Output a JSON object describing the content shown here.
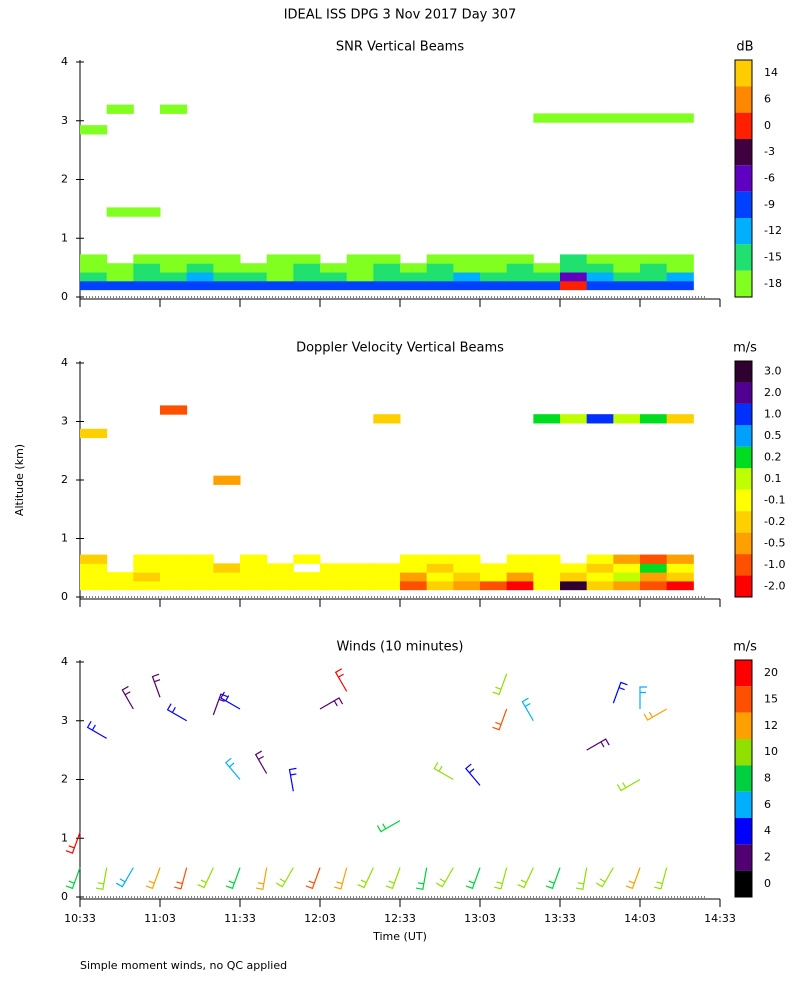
{
  "title": "IDEAL ISS DPG    3 Nov 2017 Day 307",
  "footnote": "Simple moment winds, no QC applied",
  "chart_data": [
    {
      "type": "heatmap",
      "title": "SNR Vertical Beams",
      "units": "dB",
      "xlim": [
        "10:33",
        "14:33"
      ],
      "xticks": [
        "10:33",
        "11:03",
        "11:33",
        "12:03",
        "12:33",
        "13:03",
        "13:33",
        "14:03",
        "14:33"
      ],
      "ylim": [
        0,
        4
      ],
      "yticks": [
        0,
        1,
        2,
        3,
        4
      ],
      "colorbar": {
        "colors": [
          "#ffcc00",
          "#ff8800",
          "#ff2000",
          "#400040",
          "#6000c0",
          "#0040ff",
          "#00b0ff",
          "#20e070",
          "#80ff20"
        ],
        "ticks": [
          14,
          6,
          0,
          -3,
          -6,
          -9,
          -12,
          -15,
          -18
        ]
      },
      "x": [
        "10:33",
        "10:43",
        "10:53",
        "11:03",
        "11:13",
        "11:23",
        "11:33",
        "11:43",
        "11:53",
        "12:03",
        "12:13",
        "12:23",
        "12:33",
        "12:43",
        "12:53",
        "13:03",
        "13:13",
        "13:23",
        "13:33",
        "13:43",
        "13:53",
        "14:03",
        "14:13"
      ],
      "y": [
        0.2,
        0.35,
        0.5,
        0.65,
        1.45,
        2.85,
        3.05,
        3.2
      ],
      "values": [
        [
          -9,
          -9,
          -9,
          -9,
          -9,
          -9,
          -9,
          -9,
          -9,
          -9,
          -9,
          -9,
          -9,
          -9,
          -9,
          -9,
          -9,
          -9,
          0,
          -9,
          -9,
          -9,
          -9
        ],
        [
          -15,
          -18,
          -15,
          -15,
          -12,
          -15,
          -15,
          -18,
          -15,
          -15,
          -18,
          -15,
          -15,
          -15,
          -12,
          -15,
          -15,
          -15,
          -6,
          -12,
          -15,
          -15,
          -12
        ],
        [
          -18,
          -18,
          -15,
          -18,
          -15,
          -18,
          -18,
          -18,
          -15,
          -18,
          -18,
          -15,
          -18,
          -15,
          -18,
          -18,
          -15,
          -18,
          -15,
          -15,
          -18,
          -15,
          -18
        ],
        [
          -18,
          null,
          -18,
          -18,
          -18,
          -18,
          null,
          -18,
          -18,
          null,
          -18,
          -18,
          null,
          -18,
          -18,
          -18,
          -18,
          null,
          -15,
          -18,
          -18,
          -18,
          -18
        ],
        [
          null,
          -18,
          -18,
          null,
          null,
          null,
          null,
          null,
          null,
          null,
          null,
          null,
          null,
          null,
          null,
          null,
          null,
          null,
          null,
          null,
          null,
          null,
          null
        ],
        [
          -18,
          null,
          null,
          null,
          null,
          null,
          null,
          null,
          null,
          null,
          null,
          null,
          null,
          null,
          null,
          null,
          null,
          null,
          null,
          null,
          null,
          null,
          null
        ],
        [
          null,
          null,
          null,
          null,
          null,
          null,
          null,
          null,
          null,
          null,
          null,
          null,
          null,
          null,
          null,
          null,
          null,
          -18,
          -18,
          -18,
          -18,
          -18,
          -18
        ],
        [
          null,
          -18,
          null,
          -18,
          null,
          null,
          null,
          null,
          null,
          null,
          null,
          null,
          null,
          null,
          null,
          null,
          null,
          null,
          null,
          null,
          null,
          null,
          null
        ]
      ]
    },
    {
      "type": "heatmap",
      "title": "Doppler Velocity Vertical Beams",
      "units": "m/s",
      "ylabel": "Altitude (km)",
      "xlim": [
        "10:33",
        "14:33"
      ],
      "xticks": [
        "10:33",
        "11:03",
        "11:33",
        "12:03",
        "12:33",
        "13:03",
        "13:33",
        "14:03",
        "14:33"
      ],
      "ylim": [
        0,
        4
      ],
      "yticks": [
        0,
        1,
        2,
        3,
        4
      ],
      "colorbar": {
        "colors": [
          "#300030",
          "#500090",
          "#0030ff",
          "#00a0ff",
          "#00dd20",
          "#c0ff00",
          "#ffff00",
          "#ffd000",
          "#ffa000",
          "#ff5000",
          "#ff0000"
        ],
        "ticks": [
          {
            "value": 3,
            "label": "3.0"
          },
          {
            "value": 2,
            "label": "2.0"
          },
          {
            "value": 1,
            "label": "1.0"
          },
          0.5,
          0.2,
          0.1,
          -0.1,
          -0.2,
          -0.5,
          {
            "value": -1,
            "label": "-1.0"
          },
          {
            "value": -2,
            "label": "-2.0"
          }
        ]
      },
      "x": [
        "10:33",
        "10:43",
        "10:53",
        "11:03",
        "11:13",
        "11:23",
        "11:33",
        "11:43",
        "11:53",
        "12:03",
        "12:13",
        "12:23",
        "12:33",
        "12:43",
        "12:53",
        "13:03",
        "13:13",
        "13:23",
        "13:33",
        "13:43",
        "13:53",
        "14:03",
        "14:13"
      ],
      "y": [
        0.2,
        0.35,
        0.5,
        0.65,
        2.0,
        2.8,
        3.05,
        3.2
      ],
      "values": [
        [
          -0.1,
          -0.1,
          -0.1,
          -0.1,
          -0.1,
          -0.1,
          -0.1,
          -0.1,
          -0.1,
          -0.1,
          -0.1,
          -0.1,
          -1.0,
          -0.2,
          -0.5,
          -1.0,
          -2.0,
          -0.1,
          3.0,
          -0.2,
          -0.5,
          -1.0,
          -2.0
        ],
        [
          -0.1,
          -0.1,
          -0.2,
          -0.1,
          -0.1,
          -0.1,
          -0.1,
          -0.1,
          -0.1,
          -0.1,
          -0.1,
          -0.1,
          -0.5,
          -0.1,
          -0.2,
          -0.1,
          -0.5,
          -0.1,
          -0.2,
          -0.1,
          0.1,
          -0.5,
          -0.2
        ],
        [
          -0.1,
          null,
          -0.1,
          -0.1,
          -0.1,
          -0.2,
          -0.1,
          -0.1,
          null,
          -0.1,
          -0.1,
          -0.1,
          -0.1,
          -0.2,
          -0.1,
          -0.1,
          -0.1,
          -0.1,
          -0.1,
          -0.2,
          -0.1,
          0.2,
          -0.1
        ],
        [
          -0.2,
          null,
          -0.1,
          -0.1,
          -0.1,
          null,
          -0.1,
          null,
          -0.1,
          null,
          null,
          null,
          -0.1,
          -0.1,
          -0.1,
          null,
          -0.1,
          -0.1,
          null,
          -0.1,
          -0.5,
          -1.0,
          -0.5
        ],
        [
          null,
          null,
          null,
          null,
          null,
          -0.5,
          null,
          null,
          null,
          null,
          null,
          null,
          null,
          null,
          null,
          null,
          null,
          null,
          null,
          null,
          null,
          null,
          null
        ],
        [
          -0.2,
          null,
          null,
          null,
          null,
          null,
          null,
          null,
          null,
          null,
          null,
          null,
          null,
          null,
          null,
          null,
          null,
          null,
          null,
          null,
          null,
          null,
          null
        ],
        [
          null,
          null,
          null,
          null,
          null,
          null,
          null,
          null,
          null,
          null,
          null,
          -0.2,
          null,
          null,
          null,
          null,
          null,
          0.2,
          0.1,
          1.0,
          0.1,
          0.2,
          -0.2
        ],
        [
          null,
          null,
          null,
          -1.0,
          null,
          null,
          null,
          null,
          null,
          null,
          null,
          null,
          null,
          null,
          null,
          null,
          null,
          null,
          null,
          null,
          null,
          null,
          null
        ]
      ]
    },
    {
      "type": "barbs",
      "title": "Winds (10 minutes)",
      "units": "m/s",
      "xlabel": "Time (UT)",
      "xlim": [
        "10:33",
        "14:33"
      ],
      "xticks": [
        "10:33",
        "11:03",
        "11:33",
        "12:03",
        "12:33",
        "13:03",
        "13:33",
        "14:03",
        "14:33"
      ],
      "ylim": [
        0,
        4
      ],
      "yticks": [
        0,
        1,
        2,
        3,
        4
      ],
      "colorbar": {
        "colors": [
          "#ff0000",
          "#ff5000",
          "#ffa000",
          "#90e000",
          "#00d040",
          "#00b0ff",
          "#0000ff",
          "#500070",
          "#000000"
        ],
        "ticks": [
          20,
          15,
          12,
          10,
          8,
          6,
          4,
          2,
          0
        ]
      },
      "x": [
        "10:33",
        "10:43",
        "10:53",
        "11:03",
        "11:13",
        "11:23",
        "11:33",
        "11:43",
        "11:53",
        "12:03",
        "12:13",
        "12:23",
        "12:33",
        "12:43",
        "12:53",
        "13:03",
        "13:13",
        "13:23",
        "13:33",
        "13:43",
        "13:53",
        "14:03",
        "14:13",
        "10:43",
        "10:53",
        "11:03",
        "11:13",
        "11:23",
        "11:33",
        "11:33",
        "11:43",
        "11:53",
        "12:03",
        "12:13",
        "12:33",
        "12:53",
        "13:03",
        "13:13",
        "13:13",
        "13:23",
        "13:43",
        "13:53",
        "14:03",
        "14:03",
        "14:13",
        "10:33"
      ],
      "y": [
        0.5,
        0.5,
        0.5,
        0.5,
        0.5,
        0.5,
        0.5,
        0.5,
        0.5,
        0.5,
        0.5,
        0.5,
        0.5,
        0.5,
        0.5,
        0.5,
        0.5,
        0.5,
        0.5,
        0.5,
        0.5,
        0.5,
        0.5,
        2.7,
        3.2,
        3.4,
        3.0,
        3.1,
        3.2,
        2.0,
        2.1,
        1.8,
        3.2,
        3.5,
        1.3,
        2.0,
        1.9,
        3.2,
        3.8,
        3.0,
        2.5,
        3.3,
        2.0,
        3.2,
        3.2,
        1.1
      ],
      "speed": [
        8,
        10,
        6,
        12,
        15,
        10,
        8,
        12,
        10,
        15,
        12,
        10,
        10,
        8,
        10,
        8,
        10,
        10,
        8,
        10,
        10,
        12,
        10,
        4,
        2,
        2,
        4,
        2,
        4,
        6,
        2,
        4,
        2,
        20,
        8,
        10,
        4,
        15,
        10,
        6,
        2,
        4,
        10,
        6,
        12,
        20
      ],
      "direction": [
        200,
        190,
        210,
        200,
        195,
        205,
        200,
        190,
        210,
        200,
        195,
        205,
        200,
        190,
        210,
        200,
        195,
        205,
        200,
        190,
        210,
        200,
        195,
        300,
        330,
        340,
        300,
        20,
        300,
        320,
        330,
        350,
        60,
        330,
        240,
        300,
        320,
        200,
        200,
        330,
        60,
        20,
        240,
        0,
        240,
        200
      ]
    }
  ]
}
